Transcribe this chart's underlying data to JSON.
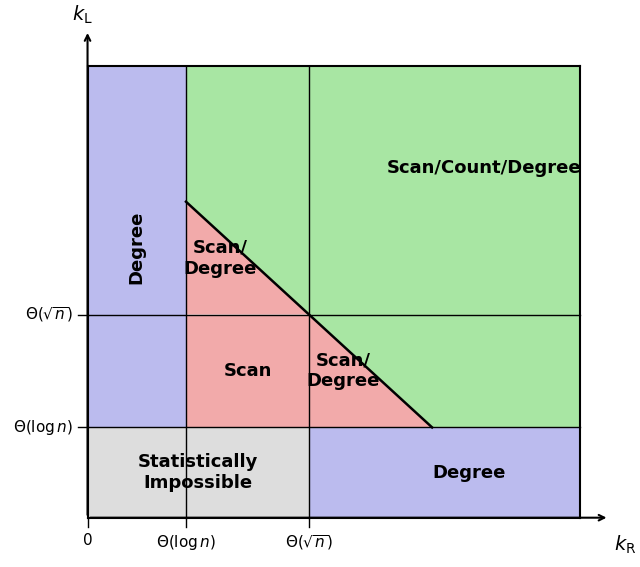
{
  "log_n": 0.2,
  "sqrt_n": 0.45,
  "max_val": 1.0,
  "colors": {
    "green": "#A8E6A3",
    "blue": "#BBBBEE",
    "pink": "#F2AAAA",
    "gray": "#DDDDDD"
  },
  "label_degree_left": "Degree",
  "label_scan_count_degree": "Scan/Count/Degree",
  "label_scan_degree_upper": "Scan/\nDegree",
  "label_scan": "Scan",
  "label_scan_degree_lower": "Scan/\nDegree",
  "label_degree_bottom": "Degree",
  "label_stat_impossible": "Statistically\nImpossible",
  "xlabel": "$k_{\\mathrm{R}}$",
  "ylabel": "$k_{\\mathrm{L}}$",
  "xtick_labels": [
    "0",
    "$\\Theta(\\log n)$",
    "$\\Theta(\\sqrt{n})$"
  ],
  "ytick_labels": [
    "$\\Theta(\\log n)$",
    "$\\Theta(\\sqrt{n})$"
  ],
  "fontsize_labels": 13,
  "fontsize_axis_labels": 14,
  "fontsize_tick_labels": 11
}
